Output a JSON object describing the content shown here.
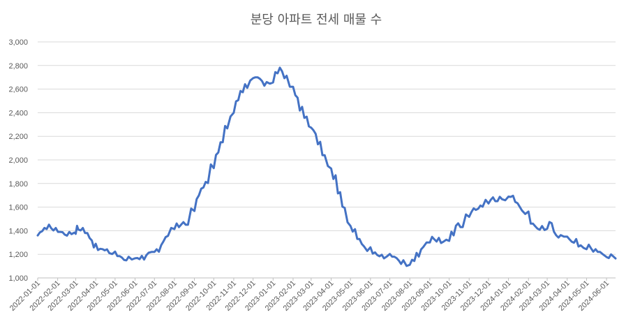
{
  "chart_data": {
    "type": "line",
    "title": "분당 아파트 전세 매물 수",
    "xlabel": "",
    "ylabel": "",
    "ylim": [
      1000,
      3000
    ],
    "yticks": [
      1000,
      1200,
      1400,
      1600,
      1800,
      2000,
      2200,
      2400,
      2600,
      2800,
      3000
    ],
    "ytick_labels": [
      "1,000",
      "1,200",
      "1,400",
      "1,600",
      "1,800",
      "2,000",
      "2,200",
      "2,400",
      "2,600",
      "2,800",
      "3,000"
    ],
    "x_range": [
      "2022-01-01",
      "2024-06-15"
    ],
    "xticks": [
      "2022-01-01",
      "2022-02-01",
      "2022-03-01",
      "2022-04-01",
      "2022-05-01",
      "2022-06-01",
      "2022-07-01",
      "2022-08-01",
      "2022-09-01",
      "2022-10-01",
      "2022-11-01",
      "2022-12-01",
      "2023-01-01",
      "2023-02-01",
      "2023-03-01",
      "2023-04-01",
      "2023-05-01",
      "2023-06-01",
      "2023-07-01",
      "2023-08-01",
      "2023-09-01",
      "2023-10-01",
      "2023-11-01",
      "2023-12-01",
      "2024-01-01",
      "2024-02-01",
      "2024-03-01",
      "2024-04-01",
      "2024-05-01",
      "2024-06-01"
    ],
    "grid": true,
    "legend": "none",
    "series": [
      {
        "color": "#4472c4",
        "points": [
          [
            "2022-01-01",
            1360
          ],
          [
            "2022-01-08",
            1390
          ],
          [
            "2022-01-15",
            1420
          ],
          [
            "2022-01-22",
            1440
          ],
          [
            "2022-01-29",
            1410
          ],
          [
            "2022-02-05",
            1390
          ],
          [
            "2022-02-12",
            1380
          ],
          [
            "2022-02-19",
            1370
          ],
          [
            "2022-02-26",
            1375
          ],
          [
            "2022-03-01",
            1380
          ],
          [
            "2022-03-05",
            1430
          ],
          [
            "2022-03-12",
            1410
          ],
          [
            "2022-03-19",
            1380
          ],
          [
            "2022-03-26",
            1330
          ],
          [
            "2022-04-01",
            1270
          ],
          [
            "2022-04-08",
            1240
          ],
          [
            "2022-04-15",
            1240
          ],
          [
            "2022-04-22",
            1230
          ],
          [
            "2022-05-01",
            1210
          ],
          [
            "2022-05-08",
            1185
          ],
          [
            "2022-05-15",
            1165
          ],
          [
            "2022-05-22",
            1160
          ],
          [
            "2022-06-01",
            1160
          ],
          [
            "2022-06-08",
            1165
          ],
          [
            "2022-06-15",
            1175
          ],
          [
            "2022-06-22",
            1200
          ],
          [
            "2022-07-01",
            1220
          ],
          [
            "2022-07-08",
            1235
          ],
          [
            "2022-07-15",
            1290
          ],
          [
            "2022-07-22",
            1350
          ],
          [
            "2022-08-01",
            1420
          ],
          [
            "2022-08-08",
            1450
          ],
          [
            "2022-08-15",
            1460
          ],
          [
            "2022-08-22",
            1450
          ],
          [
            "2022-09-01",
            1580
          ],
          [
            "2022-09-08",
            1680
          ],
          [
            "2022-09-15",
            1760
          ],
          [
            "2022-09-22",
            1810
          ],
          [
            "2022-10-01",
            1950
          ],
          [
            "2022-10-08",
            2050
          ],
          [
            "2022-10-15",
            2150
          ],
          [
            "2022-10-22",
            2280
          ],
          [
            "2022-11-01",
            2380
          ],
          [
            "2022-11-08",
            2500
          ],
          [
            "2022-11-15",
            2580
          ],
          [
            "2022-11-22",
            2630
          ],
          [
            "2022-12-01",
            2680
          ],
          [
            "2022-12-08",
            2700
          ],
          [
            "2022-12-15",
            2680
          ],
          [
            "2022-12-22",
            2640
          ],
          [
            "2023-01-01",
            2650
          ],
          [
            "2023-01-08",
            2740
          ],
          [
            "2023-01-15",
            2770
          ],
          [
            "2023-01-22",
            2700
          ],
          [
            "2023-02-01",
            2620
          ],
          [
            "2023-02-08",
            2540
          ],
          [
            "2023-02-15",
            2430
          ],
          [
            "2023-02-22",
            2360
          ],
          [
            "2023-03-01",
            2280
          ],
          [
            "2023-03-08",
            2240
          ],
          [
            "2023-03-15",
            2140
          ],
          [
            "2023-03-22",
            2040
          ],
          [
            "2023-04-01",
            1940
          ],
          [
            "2023-04-08",
            1850
          ],
          [
            "2023-04-15",
            1720
          ],
          [
            "2023-04-22",
            1600
          ],
          [
            "2023-05-01",
            1460
          ],
          [
            "2023-05-08",
            1400
          ],
          [
            "2023-05-15",
            1330
          ],
          [
            "2023-05-22",
            1280
          ],
          [
            "2023-06-01",
            1240
          ],
          [
            "2023-06-08",
            1210
          ],
          [
            "2023-06-15",
            1190
          ],
          [
            "2023-06-22",
            1185
          ],
          [
            "2023-07-01",
            1190
          ],
          [
            "2023-07-08",
            1180
          ],
          [
            "2023-07-15",
            1160
          ],
          [
            "2023-07-22",
            1130
          ],
          [
            "2023-08-01",
            1105
          ],
          [
            "2023-08-08",
            1150
          ],
          [
            "2023-08-15",
            1200
          ],
          [
            "2023-08-22",
            1250
          ],
          [
            "2023-09-01",
            1300
          ],
          [
            "2023-09-08",
            1340
          ],
          [
            "2023-09-15",
            1320
          ],
          [
            "2023-09-22",
            1300
          ],
          [
            "2023-10-01",
            1320
          ],
          [
            "2023-10-08",
            1380
          ],
          [
            "2023-10-15",
            1450
          ],
          [
            "2023-10-22",
            1430
          ],
          [
            "2023-11-01",
            1530
          ],
          [
            "2023-11-08",
            1570
          ],
          [
            "2023-11-15",
            1580
          ],
          [
            "2023-11-22",
            1610
          ],
          [
            "2023-12-01",
            1650
          ],
          [
            "2023-12-08",
            1670
          ],
          [
            "2023-12-15",
            1650
          ],
          [
            "2023-12-22",
            1680
          ],
          [
            "2024-01-01",
            1670
          ],
          [
            "2024-01-08",
            1690
          ],
          [
            "2024-01-15",
            1640
          ],
          [
            "2024-01-22",
            1590
          ],
          [
            "2024-02-01",
            1550
          ],
          [
            "2024-02-08",
            1460
          ],
          [
            "2024-02-15",
            1430
          ],
          [
            "2024-02-22",
            1420
          ],
          [
            "2024-03-01",
            1410
          ],
          [
            "2024-03-08",
            1470
          ],
          [
            "2024-03-15",
            1380
          ],
          [
            "2024-03-22",
            1350
          ],
          [
            "2024-04-01",
            1350
          ],
          [
            "2024-04-08",
            1320
          ],
          [
            "2024-04-15",
            1310
          ],
          [
            "2024-04-22",
            1270
          ],
          [
            "2024-05-01",
            1250
          ],
          [
            "2024-05-08",
            1270
          ],
          [
            "2024-05-15",
            1230
          ],
          [
            "2024-05-22",
            1220
          ],
          [
            "2024-06-01",
            1190
          ],
          [
            "2024-06-08",
            1180
          ],
          [
            "2024-06-15",
            1165
          ]
        ]
      }
    ]
  }
}
